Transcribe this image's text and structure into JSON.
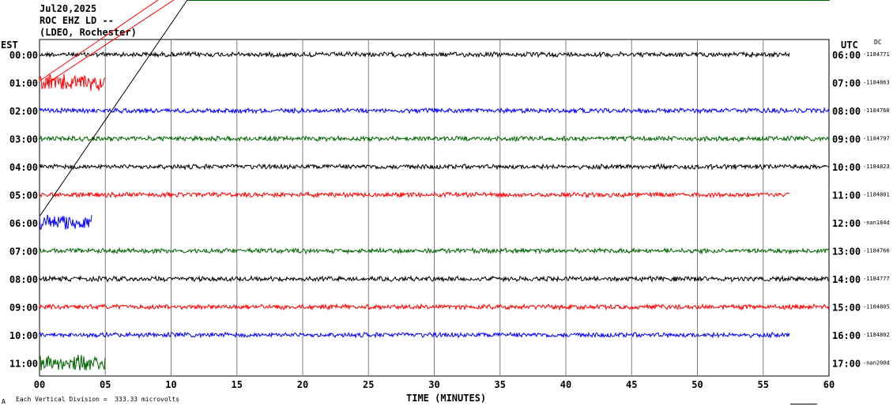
{
  "header": {
    "date": "Jul20,2025",
    "station": "ROC EHZ LD --",
    "network": "(LDEO, Rochester)"
  },
  "axis": {
    "left_label": "EST",
    "right_label": "UTC",
    "dc_label": "DC",
    "xlabel": "TIME (MINUTES)",
    "footnote_mark": "A",
    "footnote": "Each Vertical Division =  333.33 microvolts"
  },
  "chart_data": {
    "type": "line",
    "title": "Jul20,2025 ROC EHZ LD -- (LDEO, Rochester)",
    "xlabel": "TIME (MINUTES)",
    "ylabel": "",
    "xlim": [
      0,
      60
    ],
    "x_ticks": [
      "00",
      "05",
      "10",
      "15",
      "20",
      "25",
      "30",
      "35",
      "40",
      "45",
      "50",
      "55",
      "60"
    ],
    "grid": true,
    "trace_colors": [
      "#000000",
      "#ff0000",
      "#0000ff",
      "#006400"
    ],
    "rows": [
      {
        "est": "00:00",
        "utc": "06:00",
        "dc": "-1184771",
        "color": "#000000",
        "end_minute": 57,
        "amplitude": "normal"
      },
      {
        "est": "01:00",
        "utc": "07:00",
        "dc": "-1184863",
        "color": "#ff0000",
        "end_minute": 5,
        "amplitude": "high"
      },
      {
        "est": "02:00",
        "utc": "08:00",
        "dc": "-1184760",
        "color": "#0000ff",
        "end_minute": 60,
        "amplitude": "normal"
      },
      {
        "est": "03:00",
        "utc": "09:00",
        "dc": "-1184797",
        "color": "#006400",
        "end_minute": 60,
        "amplitude": "normal"
      },
      {
        "est": "04:00",
        "utc": "10:00",
        "dc": "-1184823",
        "color": "#000000",
        "end_minute": 60,
        "amplitude": "normal"
      },
      {
        "est": "05:00",
        "utc": "11:00",
        "dc": "-1184801",
        "color": "#ff0000",
        "end_minute": 57,
        "amplitude": "normal"
      },
      {
        "est": "06:00",
        "utc": "12:00",
        "dc": "-nan184d",
        "color": "#0000ff",
        "end_minute": 4,
        "amplitude": "high"
      },
      {
        "est": "07:00",
        "utc": "13:00",
        "dc": "-1184766",
        "color": "#006400",
        "end_minute": 60,
        "amplitude": "normal"
      },
      {
        "est": "08:00",
        "utc": "14:00",
        "dc": "-1184777",
        "color": "#000000",
        "end_minute": 60,
        "amplitude": "normal"
      },
      {
        "est": "09:00",
        "utc": "15:00",
        "dc": "-1184805",
        "color": "#ff0000",
        "end_minute": 60,
        "amplitude": "normal"
      },
      {
        "est": "10:00",
        "utc": "16:00",
        "dc": "-1184802",
        "color": "#0000ff",
        "end_minute": 57,
        "amplitude": "normal"
      },
      {
        "est": "11:00",
        "utc": "17:00",
        "dc": "-nan200d",
        "color": "#006400",
        "end_minute": 5,
        "amplitude": "high"
      }
    ]
  }
}
